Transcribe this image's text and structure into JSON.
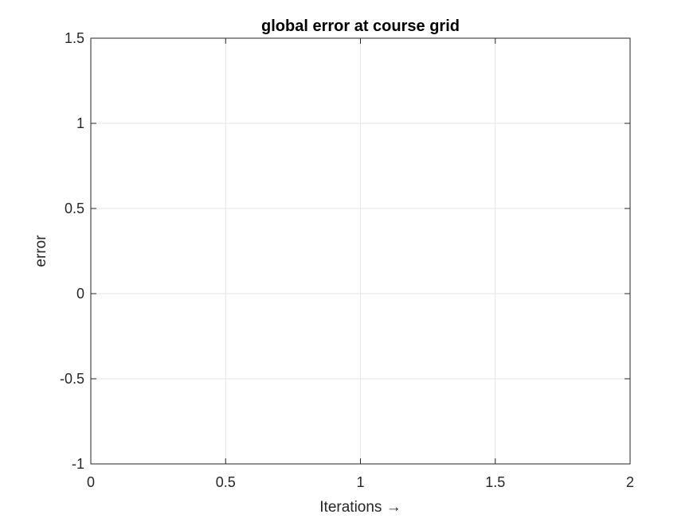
{
  "chart_data": {
    "type": "line",
    "title": "global error at course grid",
    "xlabel": "Iterations →",
    "ylabel": "error",
    "xlim": [
      0,
      2
    ],
    "ylim": [
      -1,
      1.5
    ],
    "xticks": [
      0,
      0.5,
      1,
      1.5,
      2
    ],
    "yticks": [
      -1,
      -0.5,
      0,
      0.5,
      1,
      1.5
    ],
    "xtick_labels": [
      "0",
      "0.5",
      "1",
      "1.5",
      "2"
    ],
    "ytick_labels": [
      "-1",
      "-0.5",
      "0",
      "0.5",
      "1",
      "1.5"
    ],
    "grid": true,
    "series": []
  },
  "colors": {
    "axis": "#262626",
    "grid": "#e6e6e6",
    "background": "#ffffff"
  }
}
